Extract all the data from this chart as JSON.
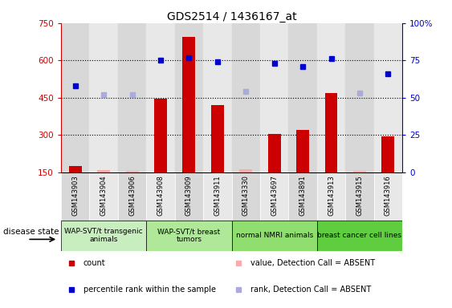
{
  "title": "GDS2514 / 1436167_at",
  "samples": [
    "GSM143903",
    "GSM143904",
    "GSM143906",
    "GSM143908",
    "GSM143909",
    "GSM143911",
    "GSM143330",
    "GSM143697",
    "GSM143891",
    "GSM143913",
    "GSM143915",
    "GSM143916"
  ],
  "bar_values": [
    175,
    160,
    155,
    447,
    693,
    422,
    162,
    305,
    320,
    470,
    158,
    295
  ],
  "bar_absent": [
    false,
    true,
    true,
    false,
    false,
    false,
    true,
    false,
    false,
    false,
    true,
    false
  ],
  "dot_y2_values": [
    58,
    52,
    52,
    75,
    77,
    74,
    54,
    73,
    71,
    76,
    53,
    66
  ],
  "dot_absent": [
    false,
    true,
    true,
    false,
    false,
    false,
    true,
    false,
    false,
    false,
    true,
    false
  ],
  "ymin": 150,
  "ymax": 750,
  "yticks": [
    150,
    300,
    450,
    600,
    750
  ],
  "y2min": 0,
  "y2max": 100,
  "y2ticks": [
    0,
    25,
    50,
    75,
    100
  ],
  "groups": [
    {
      "label": "WAP-SVT/t transgenic\nanimals",
      "indices": [
        0,
        1,
        2
      ],
      "color": "#c8edbe"
    },
    {
      "label": "WAP-SVT/t breast\ntumors",
      "indices": [
        3,
        4,
        5
      ],
      "color": "#b0e89a"
    },
    {
      "label": "normal NMRI animals",
      "indices": [
        6,
        7,
        8
      ],
      "color": "#90dd70"
    },
    {
      "label": "breast cancer cell lines",
      "indices": [
        9,
        10,
        11
      ],
      "color": "#60cc40"
    }
  ],
  "bar_color_present": "#cc0000",
  "bar_color_absent": "#ffaaaa",
  "dot_color_present": "#0000cc",
  "dot_color_absent": "#aaaadd",
  "axis_left_color": "#cc0000",
  "axis_right_color": "#0000cc",
  "col_bg_even": "#d8d8d8",
  "col_bg_odd": "#e8e8e8"
}
